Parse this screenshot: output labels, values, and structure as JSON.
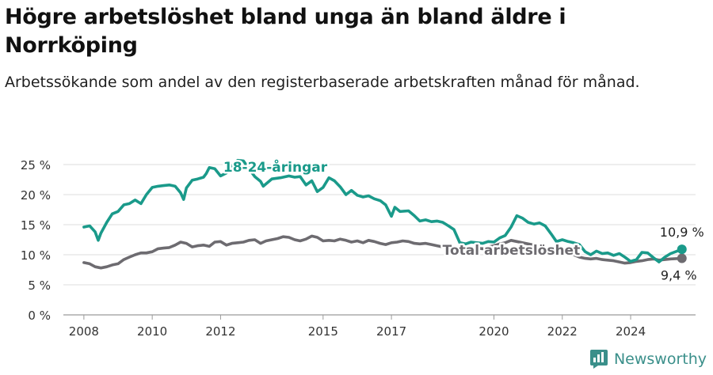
{
  "title": "Högre arbetslöshet bland unga än bland äldre i Norrköping",
  "subtitle": "Arbetssökande som andel av den registerbaserade arbetskraften månad för månad.",
  "brand": {
    "name": "Newsworthy",
    "icon": "newsworthy-logo-icon",
    "color": "#3a8f8a"
  },
  "chart_data": {
    "type": "line",
    "x_unit": "year",
    "xlim": [
      2007.4,
      2025.9
    ],
    "ylim": [
      0,
      25
    ],
    "grid": true,
    "legend": "inline labels",
    "x_ticks": [
      {
        "value": 2008,
        "label": "2008"
      },
      {
        "value": 2010,
        "label": "2010"
      },
      {
        "value": 2012,
        "label": "2012"
      },
      {
        "value": 2015,
        "label": "2015"
      },
      {
        "value": 2017,
        "label": "2017"
      },
      {
        "value": 2020,
        "label": "2020"
      },
      {
        "value": 2022,
        "label": "2022"
      },
      {
        "value": 2024,
        "label": "2024"
      }
    ],
    "y_ticks": [
      {
        "value": 0,
        "label": "0 %"
      },
      {
        "value": 5,
        "label": "5 %"
      },
      {
        "value": 10,
        "label": "10 %"
      },
      {
        "value": 15,
        "label": "15 %"
      },
      {
        "value": 20,
        "label": "20 %"
      },
      {
        "value": 25,
        "label": "25 %"
      }
    ],
    "series": [
      {
        "name": "18-24-åringar",
        "color": "#1a9a8a",
        "end_label": "10,9 %",
        "points": [
          [
            2008.0,
            14.6
          ],
          [
            2008.17,
            14.8
          ],
          [
            2008.33,
            13.8
          ],
          [
            2008.42,
            12.4
          ],
          [
            2008.5,
            13.6
          ],
          [
            2008.67,
            15.4
          ],
          [
            2008.83,
            16.8
          ],
          [
            2009.0,
            17.2
          ],
          [
            2009.17,
            18.3
          ],
          [
            2009.33,
            18.5
          ],
          [
            2009.5,
            19.1
          ],
          [
            2009.67,
            18.5
          ],
          [
            2009.83,
            20.0
          ],
          [
            2010.0,
            21.2
          ],
          [
            2010.17,
            21.4
          ],
          [
            2010.33,
            21.5
          ],
          [
            2010.5,
            21.6
          ],
          [
            2010.67,
            21.4
          ],
          [
            2010.83,
            20.3
          ],
          [
            2010.92,
            19.2
          ],
          [
            2011.0,
            21.1
          ],
          [
            2011.17,
            22.4
          ],
          [
            2011.33,
            22.6
          ],
          [
            2011.5,
            22.9
          ],
          [
            2011.58,
            23.5
          ],
          [
            2011.67,
            24.5
          ],
          [
            2011.83,
            24.3
          ],
          [
            2012.0,
            23.1
          ],
          [
            2012.17,
            23.6
          ],
          [
            2012.33,
            24.8
          ],
          [
            2012.5,
            25.7
          ],
          [
            2012.67,
            25.6
          ],
          [
            2012.83,
            24.3
          ],
          [
            2013.0,
            23.0
          ],
          [
            2013.17,
            22.2
          ],
          [
            2013.25,
            21.4
          ],
          [
            2013.5,
            22.6
          ],
          [
            2013.75,
            22.8
          ],
          [
            2014.0,
            23.1
          ],
          [
            2014.17,
            22.9
          ],
          [
            2014.33,
            23.0
          ],
          [
            2014.5,
            21.6
          ],
          [
            2014.67,
            22.3
          ],
          [
            2014.83,
            20.5
          ],
          [
            2015.0,
            21.2
          ],
          [
            2015.17,
            22.8
          ],
          [
            2015.33,
            22.3
          ],
          [
            2015.5,
            21.3
          ],
          [
            2015.67,
            20.0
          ],
          [
            2015.83,
            20.7
          ],
          [
            2016.0,
            19.9
          ],
          [
            2016.17,
            19.6
          ],
          [
            2016.33,
            19.8
          ],
          [
            2016.5,
            19.3
          ],
          [
            2016.67,
            19.0
          ],
          [
            2016.83,
            18.3
          ],
          [
            2017.0,
            16.4
          ],
          [
            2017.1,
            17.9
          ],
          [
            2017.25,
            17.2
          ],
          [
            2017.5,
            17.3
          ],
          [
            2017.67,
            16.5
          ],
          [
            2017.83,
            15.6
          ],
          [
            2018.0,
            15.8
          ],
          [
            2018.17,
            15.5
          ],
          [
            2018.33,
            15.6
          ],
          [
            2018.5,
            15.4
          ],
          [
            2018.67,
            14.8
          ],
          [
            2018.83,
            14.2
          ],
          [
            2019.0,
            12.0
          ],
          [
            2019.17,
            11.8
          ],
          [
            2019.33,
            12.1
          ],
          [
            2019.5,
            12.0
          ],
          [
            2019.67,
            11.9
          ],
          [
            2019.83,
            12.2
          ],
          [
            2020.0,
            12.1
          ],
          [
            2020.17,
            12.8
          ],
          [
            2020.33,
            13.2
          ],
          [
            2020.5,
            14.6
          ],
          [
            2020.67,
            16.5
          ],
          [
            2020.83,
            16.1
          ],
          [
            2021.0,
            15.4
          ],
          [
            2021.17,
            15.1
          ],
          [
            2021.33,
            15.3
          ],
          [
            2021.5,
            14.8
          ],
          [
            2021.67,
            13.5
          ],
          [
            2021.83,
            12.2
          ],
          [
            2022.0,
            12.5
          ],
          [
            2022.17,
            12.2
          ],
          [
            2022.33,
            12.0
          ],
          [
            2022.5,
            11.7
          ],
          [
            2022.67,
            10.5
          ],
          [
            2022.83,
            10.0
          ],
          [
            2023.0,
            10.6
          ],
          [
            2023.17,
            10.2
          ],
          [
            2023.33,
            10.3
          ],
          [
            2023.5,
            9.9
          ],
          [
            2023.67,
            10.2
          ],
          [
            2023.83,
            9.6
          ],
          [
            2024.0,
            8.9
          ],
          [
            2024.17,
            9.2
          ],
          [
            2024.33,
            10.4
          ],
          [
            2024.5,
            10.3
          ],
          [
            2024.67,
            9.5
          ],
          [
            2024.83,
            8.8
          ],
          [
            2025.0,
            9.6
          ],
          [
            2025.17,
            10.2
          ],
          [
            2025.5,
            10.9
          ]
        ]
      },
      {
        "name": "Total arbetslöshet",
        "color": "#6d6b70",
        "end_label": "9,4 %",
        "points": [
          [
            2008.0,
            8.7
          ],
          [
            2008.17,
            8.5
          ],
          [
            2008.33,
            8.0
          ],
          [
            2008.5,
            7.8
          ],
          [
            2008.67,
            8.0
          ],
          [
            2008.83,
            8.3
          ],
          [
            2009.0,
            8.5
          ],
          [
            2009.17,
            9.2
          ],
          [
            2009.33,
            9.6
          ],
          [
            2009.5,
            10.0
          ],
          [
            2009.67,
            10.3
          ],
          [
            2009.83,
            10.3
          ],
          [
            2010.0,
            10.5
          ],
          [
            2010.17,
            11.0
          ],
          [
            2010.33,
            11.1
          ],
          [
            2010.5,
            11.2
          ],
          [
            2010.67,
            11.6
          ],
          [
            2010.83,
            12.1
          ],
          [
            2011.0,
            11.9
          ],
          [
            2011.17,
            11.3
          ],
          [
            2011.33,
            11.5
          ],
          [
            2011.5,
            11.6
          ],
          [
            2011.67,
            11.4
          ],
          [
            2011.83,
            12.1
          ],
          [
            2012.0,
            12.2
          ],
          [
            2012.17,
            11.6
          ],
          [
            2012.33,
            11.9
          ],
          [
            2012.5,
            12.0
          ],
          [
            2012.67,
            12.1
          ],
          [
            2012.83,
            12.4
          ],
          [
            2013.0,
            12.5
          ],
          [
            2013.17,
            11.9
          ],
          [
            2013.33,
            12.3
          ],
          [
            2013.5,
            12.5
          ],
          [
            2013.67,
            12.7
          ],
          [
            2013.83,
            13.0
          ],
          [
            2014.0,
            12.9
          ],
          [
            2014.17,
            12.5
          ],
          [
            2014.33,
            12.3
          ],
          [
            2014.5,
            12.6
          ],
          [
            2014.67,
            13.1
          ],
          [
            2014.83,
            12.9
          ],
          [
            2015.0,
            12.3
          ],
          [
            2015.17,
            12.4
          ],
          [
            2015.33,
            12.3
          ],
          [
            2015.5,
            12.6
          ],
          [
            2015.67,
            12.4
          ],
          [
            2015.83,
            12.1
          ],
          [
            2016.0,
            12.3
          ],
          [
            2016.17,
            12.0
          ],
          [
            2016.33,
            12.4
          ],
          [
            2016.5,
            12.2
          ],
          [
            2016.67,
            11.9
          ],
          [
            2016.83,
            11.7
          ],
          [
            2017.0,
            12.0
          ],
          [
            2017.17,
            12.1
          ],
          [
            2017.33,
            12.3
          ],
          [
            2017.5,
            12.2
          ],
          [
            2017.67,
            11.9
          ],
          [
            2017.83,
            11.8
          ],
          [
            2018.0,
            11.9
          ],
          [
            2018.17,
            11.7
          ],
          [
            2018.33,
            11.5
          ],
          [
            2018.5,
            11.3
          ],
          [
            2018.67,
            11.2
          ],
          [
            2018.83,
            11.0
          ],
          [
            2019.0,
            10.9
          ],
          [
            2019.17,
            10.7
          ],
          [
            2019.33,
            10.9
          ],
          [
            2019.5,
            11.1
          ],
          [
            2019.67,
            11.0
          ],
          [
            2019.83,
            11.3
          ],
          [
            2020.0,
            11.5
          ],
          [
            2020.17,
            11.8
          ],
          [
            2020.33,
            12.0
          ],
          [
            2020.5,
            12.4
          ],
          [
            2020.67,
            12.2
          ],
          [
            2020.83,
            12.0
          ],
          [
            2021.0,
            11.8
          ],
          [
            2021.17,
            11.6
          ],
          [
            2021.33,
            11.3
          ],
          [
            2021.5,
            11.0
          ],
          [
            2021.67,
            10.7
          ],
          [
            2021.83,
            10.5
          ],
          [
            2022.0,
            10.2
          ],
          [
            2022.17,
            10.1
          ],
          [
            2022.33,
            10.0
          ],
          [
            2022.5,
            9.6
          ],
          [
            2022.67,
            9.4
          ],
          [
            2022.83,
            9.3
          ],
          [
            2023.0,
            9.4
          ],
          [
            2023.17,
            9.2
          ],
          [
            2023.33,
            9.1
          ],
          [
            2023.5,
            9.0
          ],
          [
            2023.67,
            8.8
          ],
          [
            2023.83,
            8.6
          ],
          [
            2024.0,
            8.7
          ],
          [
            2024.17,
            8.9
          ],
          [
            2024.33,
            9.0
          ],
          [
            2024.5,
            9.2
          ],
          [
            2024.67,
            9.3
          ],
          [
            2024.83,
            9.1
          ],
          [
            2025.0,
            9.2
          ],
          [
            2025.17,
            9.3
          ],
          [
            2025.5,
            9.4
          ]
        ]
      }
    ]
  }
}
